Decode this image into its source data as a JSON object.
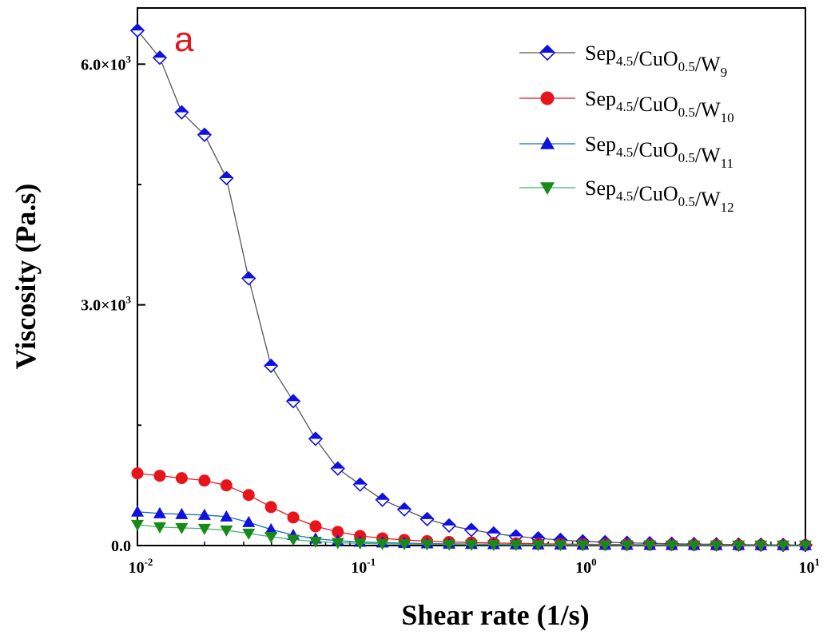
{
  "chart_data": {
    "type": "line",
    "panel_label": "a",
    "panel_label_color": "#e8141c",
    "xlabel": "Shear rate (1/s)",
    "ylabel": "Viscosity (Pa.s)",
    "x_scale": "log",
    "xlim": [
      0.01,
      10
    ],
    "ylim": [
      0,
      6700
    ],
    "x_ticks": [
      {
        "value": 0.01,
        "base": "10",
        "exp": "-2"
      },
      {
        "value": 0.1,
        "base": "10",
        "exp": "-1"
      },
      {
        "value": 1,
        "base": "10",
        "exp": "0"
      },
      {
        "value": 10,
        "base": "10",
        "exp": "1"
      }
    ],
    "y_ticks": [
      {
        "value": 0,
        "label": "0.0"
      },
      {
        "value": 3000,
        "mant": "3.0×10",
        "exp": "3"
      },
      {
        "value": 6000,
        "mant": "6.0×10",
        "exp": "3"
      }
    ],
    "y_minor_ticks": [
      1500,
      4500
    ],
    "grid": false,
    "legend_position": "top-right",
    "x": [
      0.01,
      0.0126,
      0.0158,
      0.02,
      0.0251,
      0.0316,
      0.0398,
      0.0501,
      0.0631,
      0.0794,
      0.1,
      0.126,
      0.158,
      0.2,
      0.251,
      0.316,
      0.398,
      0.501,
      0.631,
      0.794,
      1.0,
      1.26,
      1.58,
      2.0,
      2.51,
      3.16,
      3.98,
      5.01,
      6.31,
      7.94,
      10.0
    ],
    "series": [
      {
        "name_parts": [
          {
            "t": "Sep",
            "sub": "4.5"
          },
          {
            "t": "/CuO",
            "sub": "0.5"
          },
          {
            "t": "/W",
            "sub": "9"
          }
        ],
        "marker": "diamond-half",
        "color": "#1010e0",
        "line_color": "#555555",
        "values": [
          6420,
          6080,
          5400,
          5120,
          4580,
          3330,
          2240,
          1800,
          1330,
          960,
          760,
          570,
          450,
          330,
          250,
          195,
          150,
          115,
          90,
          70,
          52,
          42,
          34,
          28,
          22,
          18,
          15,
          12,
          10,
          8,
          6
        ]
      },
      {
        "name_parts": [
          {
            "t": "Sep",
            "sub": "4.5"
          },
          {
            "t": "/CuO",
            "sub": "0.5"
          },
          {
            "t": "/W",
            "sub": "10"
          }
        ],
        "marker": "circle",
        "color": "#e8141c",
        "line_color": "#e8141c",
        "values": [
          900,
          870,
          840,
          810,
          750,
          630,
          480,
          350,
          240,
          170,
          120,
          90,
          70,
          55,
          45,
          38,
          32,
          27,
          22,
          19,
          16,
          14,
          12,
          10,
          9,
          8,
          7,
          6,
          5,
          5,
          4
        ]
      },
      {
        "name_parts": [
          {
            "t": "Sep",
            "sub": "4.5"
          },
          {
            "t": "/CuO",
            "sub": "0.5"
          },
          {
            "t": "/W",
            "sub": "11"
          }
        ],
        "marker": "triangle-up",
        "color": "#1010e0",
        "line_color": "#1a6fb5",
        "values": [
          420,
          400,
          390,
          380,
          360,
          290,
          200,
          130,
          85,
          60,
          45,
          36,
          30,
          25,
          21,
          18,
          15,
          13,
          11,
          10,
          9,
          8,
          7,
          6,
          5,
          5,
          4,
          4,
          3,
          3,
          3
        ]
      },
      {
        "name_parts": [
          {
            "t": "Sep",
            "sub": "4.5"
          },
          {
            "t": "/CuO",
            "sub": "0.5"
          },
          {
            "t": "/W",
            "sub": "12"
          }
        ],
        "marker": "triangle-down",
        "color": "#178a17",
        "line_color": "#3cb371",
        "values": [
          260,
          230,
          220,
          210,
          190,
          150,
          110,
          75,
          50,
          35,
          28,
          23,
          19,
          16,
          14,
          12,
          10,
          9,
          8,
          7,
          6,
          6,
          5,
          5,
          4,
          4,
          3,
          3,
          3,
          2,
          2
        ]
      }
    ]
  }
}
